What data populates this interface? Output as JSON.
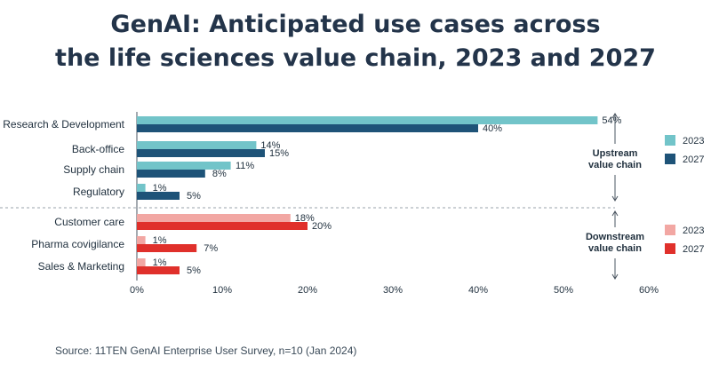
{
  "chart_data": {
    "type": "bar",
    "orientation": "horizontal",
    "title_line1": "GenAI: Anticipated use cases across",
    "title_line2": "the life sciences value chain, 2023 and 2027",
    "xlim": [
      0,
      60
    ],
    "x_ticks": [
      "0%",
      "10%",
      "20%",
      "30%",
      "40%",
      "50%",
      "60%"
    ],
    "value_suffix": "%",
    "groups": [
      {
        "name_line1": "Upstream",
        "name_line2": "value chain",
        "categories": [
          "Research & Development",
          "Back-office",
          "Supply chain",
          "Regulatory"
        ],
        "series": [
          {
            "name": "2023",
            "color": "#72c4c9",
            "values": [
              54,
              14,
              11,
              1
            ]
          },
          {
            "name": "2027",
            "color": "#1e5378",
            "values": [
              40,
              15,
              8,
              5
            ]
          }
        ]
      },
      {
        "name_line1": "Downstream",
        "name_line2": "value chain",
        "categories": [
          "Customer care",
          "Pharma covigilance",
          "Sales & Marketing"
        ],
        "series": [
          {
            "name": "2023",
            "color": "#f2a7a3",
            "values": [
              18,
              1,
              1
            ]
          },
          {
            "name": "2027",
            "color": "#e0302b",
            "values": [
              20,
              7,
              5
            ]
          }
        ]
      }
    ]
  },
  "source": "Source: 11TEN GenAI Enterprise User Survey, n=10 (Jan 2024)"
}
